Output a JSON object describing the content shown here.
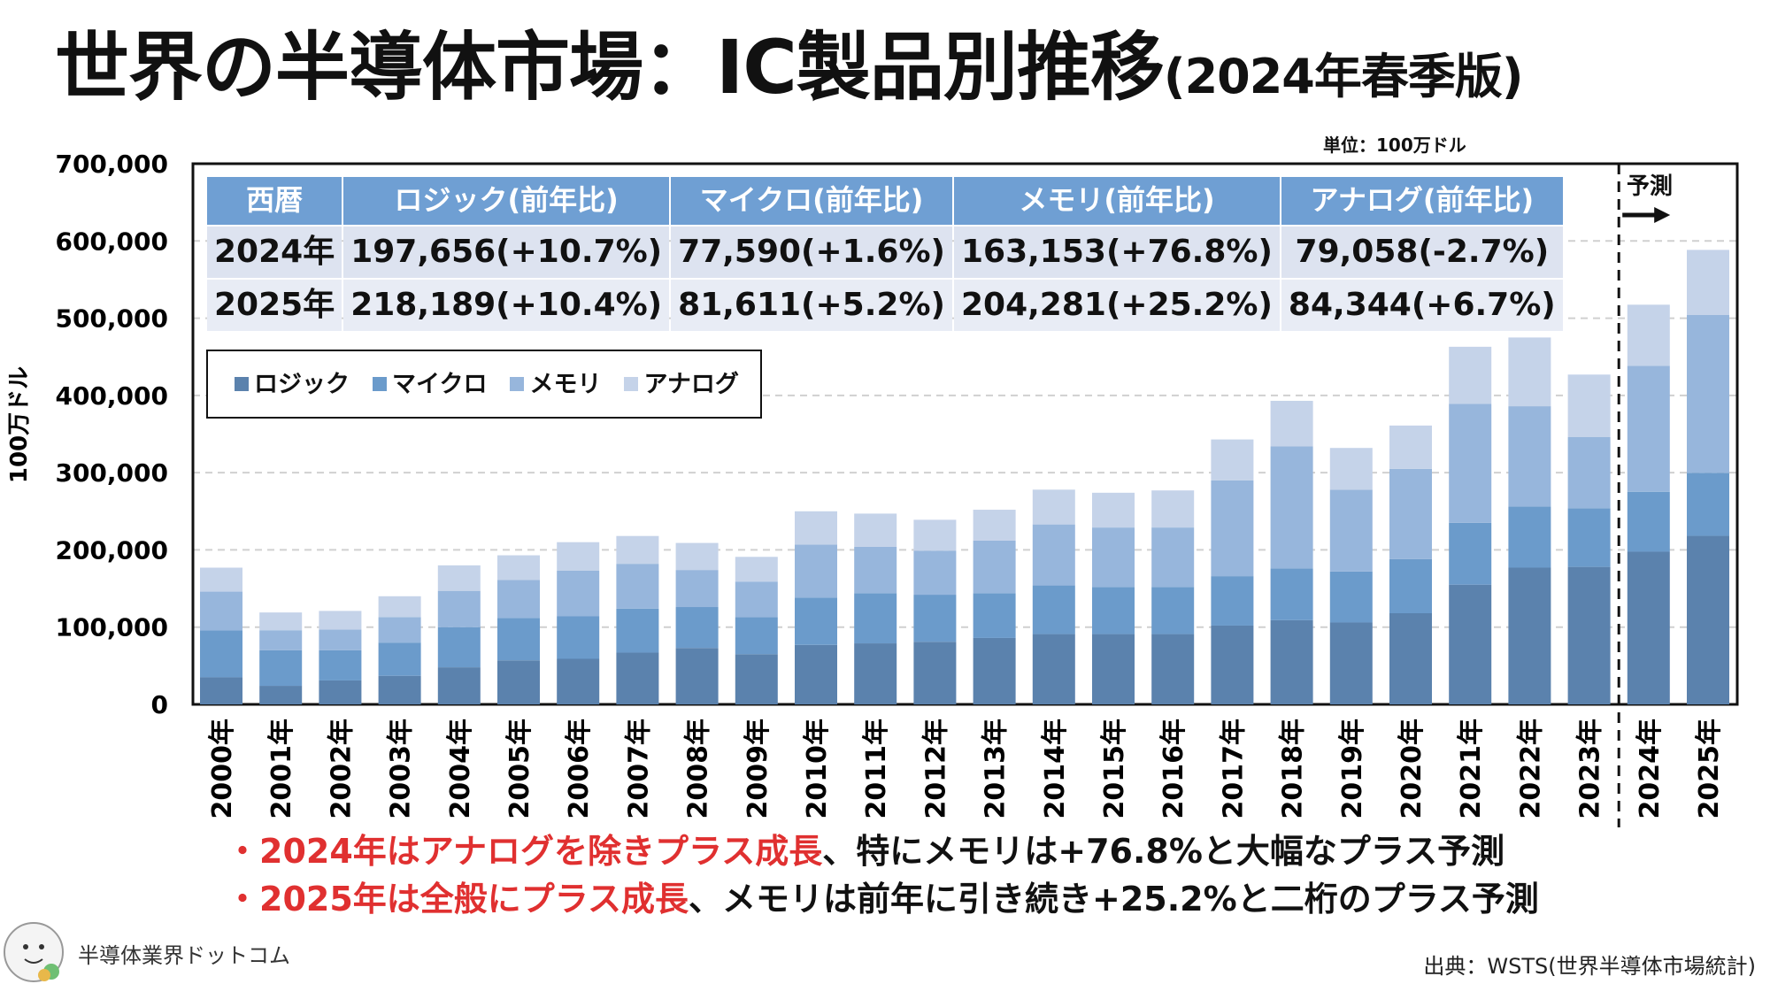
{
  "title": {
    "main": "世界の半導体市場：IC製品別推移",
    "sub": "(2024年春季版)"
  },
  "unit_label": "単位：100万ドル",
  "forecast_label": "予測",
  "table": {
    "headers": [
      "西暦",
      "ロジック(前年比)",
      "マイクロ(前年比)",
      "メモリ(前年比)",
      "アナログ(前年比)"
    ],
    "rows": [
      [
        "2024年",
        "197,656(+10.7%)",
        "77,590(+1.6%)",
        "163,153(+76.8%)",
        "79,058(-2.7%)"
      ],
      [
        "2025年",
        "218,189(+10.4%)",
        "81,611(+5.2%)",
        "204,281(+25.2%)",
        "84,344(+6.7%)"
      ]
    ]
  },
  "bullets": [
    {
      "red": "・2024年はアナログを除きプラス成長",
      "rest": "、特にメモリは+76.8%と大幅なプラス予測"
    },
    {
      "red": "・2025年は全般にプラス成長",
      "rest": "、メモリは前年に引き続き+25.2%と二桁のプラス予測"
    }
  ],
  "brand": "半導体業界ドットコム",
  "source": "出典：WSTS(世界半導体市場統計)",
  "colors": {
    "logic": "#5b82ad",
    "micro": "#6b9bcb",
    "memory": "#97b6dc",
    "analog": "#c5d3e9",
    "header": "#6f9fd3",
    "emphasis": "#e03030"
  },
  "chart_data": {
    "type": "bar",
    "stacked": true,
    "ylabel": "100万ドル",
    "ylim": [
      0,
      700000
    ],
    "yticks": [
      "0",
      "100,000",
      "200,000",
      "300,000",
      "400,000",
      "500,000",
      "600,000",
      "700,000"
    ],
    "grid": true,
    "legend_placement": "top-left",
    "categories": [
      "2000年",
      "2001年",
      "2002年",
      "2003年",
      "2004年",
      "2005年",
      "2006年",
      "2007年",
      "2008年",
      "2009年",
      "2010年",
      "2011年",
      "2012年",
      "2013年",
      "2014年",
      "2015年",
      "2016年",
      "2017年",
      "2018年",
      "2019年",
      "2020年",
      "2021年",
      "2022年",
      "2023年",
      "2024年",
      "2025年"
    ],
    "forecast_from": "2024年",
    "series": [
      {
        "name": "ロジック",
        "values": [
          35000,
          24000,
          31000,
          37000,
          48000,
          57000,
          59000,
          67000,
          73000,
          65000,
          77000,
          79000,
          81000,
          86000,
          91000,
          91000,
          91000,
          102000,
          109000,
          106000,
          118000,
          155000,
          177000,
          178000,
          197656,
          218189
        ]
      },
      {
        "name": "マイクロ",
        "values": [
          61000,
          46000,
          39000,
          43000,
          52000,
          55000,
          55000,
          57000,
          53000,
          48000,
          61000,
          65000,
          61000,
          58000,
          63000,
          61000,
          61000,
          64000,
          67000,
          66000,
          70000,
          80000,
          79000,
          76000,
          77590,
          81611
        ]
      },
      {
        "name": "メモリ",
        "values": [
          50000,
          26000,
          27000,
          33000,
          47000,
          49000,
          59000,
          58000,
          48000,
          46000,
          69000,
          60000,
          57000,
          68000,
          79000,
          77000,
          77000,
          124000,
          158000,
          106000,
          117000,
          154000,
          130000,
          92000,
          163153,
          204281
        ]
      },
      {
        "name": "アナログ",
        "values": [
          31000,
          23000,
          24000,
          27000,
          33000,
          32000,
          37000,
          36000,
          35000,
          32000,
          43000,
          43000,
          40000,
          40000,
          45000,
          45000,
          48000,
          53000,
          59000,
          54000,
          56000,
          74000,
          89000,
          81000,
          79058,
          84344
        ]
      }
    ]
  }
}
